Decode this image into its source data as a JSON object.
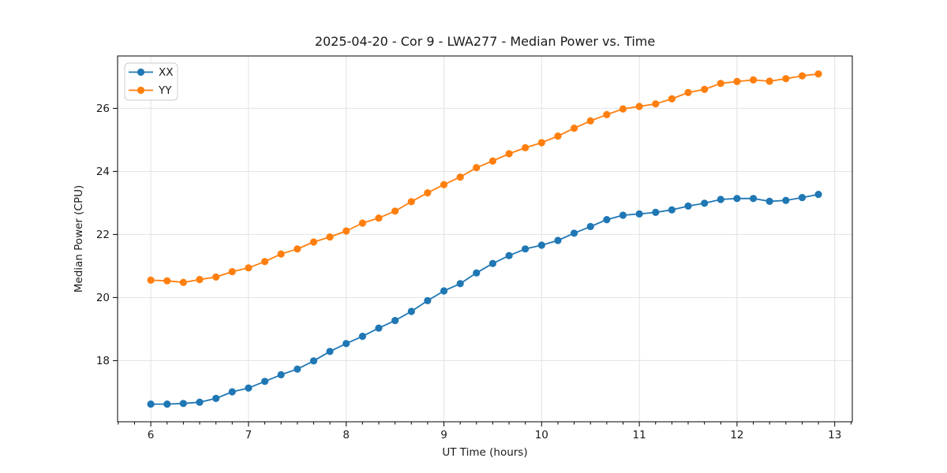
{
  "figure": {
    "title": "2025-04-20 - Cor 9 - LWA277 - Median Power vs. Time"
  },
  "chart_data": {
    "type": "line",
    "title": "2025-04-20 - Cor 9 - LWA277 - Median Power vs. Time",
    "xlabel": "UT Time (hours)",
    "ylabel": "Median Power (CPU)",
    "xlim": [
      5.66,
      13.18
    ],
    "ylim": [
      16.06,
      27.66
    ],
    "xticks": [
      6,
      7,
      8,
      9,
      10,
      11,
      12,
      13
    ],
    "yticks": [
      18,
      20,
      22,
      24,
      26
    ],
    "x_minor_tick_interval_hours": 0.166667,
    "grid": true,
    "legend_position": "upper-left",
    "marker": "circle",
    "x": [
      6.0,
      6.167,
      6.333,
      6.5,
      6.667,
      6.833,
      7.0,
      7.167,
      7.333,
      7.5,
      7.667,
      7.833,
      8.0,
      8.167,
      8.333,
      8.5,
      8.667,
      8.833,
      9.0,
      9.167,
      9.333,
      9.5,
      9.667,
      9.833,
      10.0,
      10.167,
      10.333,
      10.5,
      10.667,
      10.833,
      11.0,
      11.167,
      11.333,
      11.5,
      11.667,
      11.833,
      12.0,
      12.167,
      12.333,
      12.5,
      12.667,
      12.833
    ],
    "series": [
      {
        "name": "XX",
        "color": "#1f77b4",
        "values": [
          16.62,
          16.62,
          16.64,
          16.68,
          16.8,
          17.01,
          17.13,
          17.34,
          17.55,
          17.73,
          17.99,
          18.29,
          18.54,
          18.77,
          19.03,
          19.27,
          19.56,
          19.9,
          20.21,
          20.44,
          20.78,
          21.08,
          21.33,
          21.54,
          21.66,
          21.81,
          22.04,
          22.25,
          22.47,
          22.61,
          22.65,
          22.7,
          22.78,
          22.9,
          22.99,
          23.11,
          23.14,
          23.14,
          23.05,
          23.08,
          23.17,
          23.27
        ]
      },
      {
        "name": "YY",
        "color": "#ff7f0e",
        "values": [
          20.55,
          20.53,
          20.48,
          20.57,
          20.65,
          20.82,
          20.94,
          21.14,
          21.38,
          21.54,
          21.76,
          21.92,
          22.11,
          22.36,
          22.52,
          22.74,
          23.04,
          23.32,
          23.58,
          23.82,
          24.12,
          24.33,
          24.56,
          24.75,
          24.91,
          25.12,
          25.37,
          25.6,
          25.8,
          25.98,
          26.06,
          26.14,
          26.3,
          26.5,
          26.6,
          26.79,
          26.85,
          26.9,
          26.86,
          26.94,
          27.03,
          27.09
        ]
      }
    ]
  }
}
